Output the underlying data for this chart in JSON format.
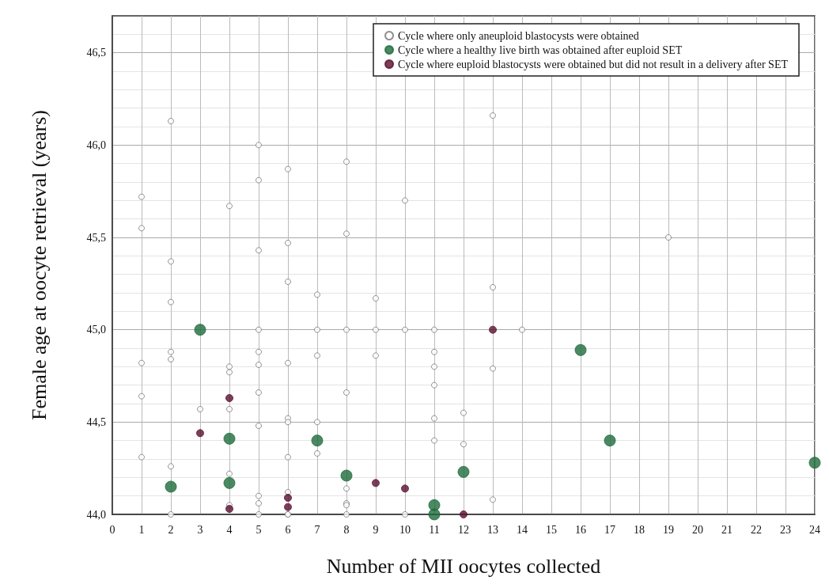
{
  "chart_data": {
    "type": "scatter",
    "xlabel": "Number of MII oocytes collected",
    "ylabel": "Female age at oocyte retrieval (years)",
    "xlim": [
      0,
      24
    ],
    "xticks": [
      0,
      1,
      2,
      3,
      4,
      5,
      6,
      7,
      8,
      9,
      10,
      11,
      12,
      13,
      14,
      15,
      16,
      17,
      18,
      19,
      20,
      21,
      22,
      23,
      24
    ],
    "ylim": [
      44,
      46.7
    ],
    "yticks": [
      {
        "value": 44,
        "label": "44,0"
      },
      {
        "value": 44.5,
        "label": "44,5"
      },
      {
        "value": 45,
        "label": "45,0"
      },
      {
        "value": 45.5,
        "label": "45,5"
      },
      {
        "value": 46,
        "label": "46,0"
      },
      {
        "value": 46.5,
        "label": "46,5"
      }
    ],
    "grid": true,
    "legend": "top right",
    "marker": "circle",
    "series": [
      {
        "name": "Cycle where only aneuploid blastocysts were obtained",
        "color": "#ffffff",
        "x": [
          1,
          1,
          1,
          1,
          1,
          2,
          2,
          2,
          2,
          2,
          2,
          2,
          3,
          4,
          4,
          4,
          4,
          4,
          4,
          5,
          5,
          5,
          5,
          5,
          5,
          5,
          5,
          5,
          5,
          5,
          6,
          6,
          6,
          6,
          6,
          6,
          6,
          6,
          6,
          6,
          7,
          7,
          7,
          7,
          7,
          8,
          8,
          8,
          8,
          8,
          8,
          8,
          8,
          9,
          9,
          9,
          10,
          10,
          10,
          11,
          11,
          11,
          11,
          11,
          11,
          12,
          12,
          13,
          13,
          13,
          13,
          14,
          19
        ],
        "values": [
          45.72,
          45.55,
          44.82,
          44.64,
          44.31,
          46.13,
          45.37,
          45.15,
          44.88,
          44.84,
          44.26,
          44.0,
          44.57,
          45.67,
          44.8,
          44.77,
          44.57,
          44.22,
          44.05,
          46.0,
          45.81,
          45.43,
          45.0,
          44.88,
          44.81,
          44.66,
          44.48,
          44.1,
          44.06,
          44.0,
          45.87,
          45.47,
          45.26,
          44.82,
          44.52,
          44.5,
          44.31,
          44.12,
          44.0,
          44.0,
          45.19,
          45.0,
          44.86,
          44.5,
          44.33,
          45.91,
          45.52,
          45.0,
          44.66,
          44.14,
          44.06,
          44.05,
          44.0,
          45.17,
          45.0,
          44.86,
          45.7,
          45.0,
          44.0,
          45.0,
          44.88,
          44.8,
          44.7,
          44.52,
          44.4,
          44.55,
          44.38,
          46.16,
          45.23,
          44.79,
          44.08,
          45.0,
          45.5
        ]
      },
      {
        "name": "Cycle where a healthy live birth was obtained after euploid SET",
        "color": "#1e6b3c",
        "x": [
          2,
          3,
          4,
          4,
          7,
          8,
          11,
          11,
          12,
          16,
          17,
          24
        ],
        "values": [
          44.15,
          45.0,
          44.41,
          44.17,
          44.4,
          44.21,
          44.05,
          44.0,
          44.23,
          44.89,
          44.4,
          44.28
        ]
      },
      {
        "name": "Cycle where euploid blastocysts were obtained but did not result in a delivery after SET",
        "color": "#5a1030",
        "x": [
          3,
          4,
          4,
          6,
          6,
          9,
          10,
          12,
          13
        ],
        "values": [
          44.44,
          44.63,
          44.03,
          44.09,
          44.04,
          44.17,
          44.14,
          44.0,
          45.0
        ]
      }
    ]
  }
}
